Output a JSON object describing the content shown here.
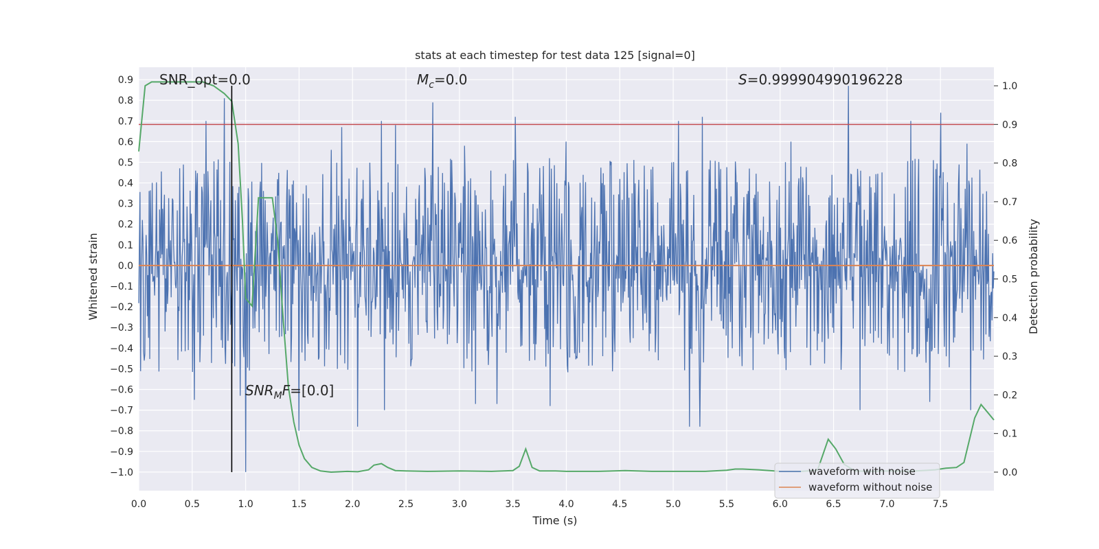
{
  "chart_data": {
    "type": "line",
    "title": "stats at each timestep for test data 125 [signal=0]",
    "xlabel": "Time (s)",
    "ylabel": "Whitened strain",
    "y2label": "Detection probability",
    "xlim": [
      0.0,
      8.0
    ],
    "ylim": [
      -1.09,
      0.96
    ],
    "y2lim": [
      -0.048,
      1.048
    ],
    "x_ticks": [
      0.0,
      0.5,
      1.0,
      1.5,
      2.0,
      2.5,
      3.0,
      3.5,
      4.0,
      4.5,
      5.0,
      5.5,
      6.0,
      6.5,
      7.0,
      7.5
    ],
    "x_tick_labels": [
      "0.0",
      "0.5",
      "1.0",
      "1.5",
      "2.0",
      "2.5",
      "3.0",
      "3.5",
      "4.0",
      "4.5",
      "5.0",
      "5.5",
      "6.0",
      "6.5",
      "7.0",
      "7.5"
    ],
    "y_ticks": [
      0.9,
      0.8,
      0.7,
      0.6,
      0.5,
      0.4,
      0.3,
      0.2,
      0.1,
      0.0,
      -0.1,
      -0.2,
      -0.3,
      -0.4,
      -0.5,
      -0.6,
      -0.7,
      -0.8,
      -0.9,
      -1.0
    ],
    "y_tick_labels": [
      "0.9",
      "0.8",
      "0.7",
      "0.6",
      "0.5",
      "0.4",
      "0.3",
      "0.2",
      "0.1",
      "0.0",
      "−0.1",
      "−0.2",
      "−0.3",
      "−0.4",
      "−0.5",
      "−0.6",
      "−0.7",
      "−0.8",
      "−0.9",
      "−1.0"
    ],
    "y2_ticks": [
      1.0,
      0.9,
      0.8,
      0.7,
      0.6,
      0.5,
      0.4,
      0.3,
      0.2,
      0.1,
      0.0
    ],
    "y2_tick_labels": [
      "1.0",
      "0.9",
      "0.8",
      "0.7",
      "0.6",
      "0.5",
      "0.4",
      "0.3",
      "0.2",
      "0.1",
      "0.0"
    ],
    "grid": true,
    "legend_placement": "lower-right",
    "annotations": {
      "snr_opt": "SNR_opt=0.0",
      "mc_symbol": "M",
      "mc_sub": "c",
      "mc_value": "=0.0",
      "s_symbol": "S",
      "s_value": "=0.999904990196228",
      "snr_mf_symbol": "SNR",
      "snr_mf_sub": "M",
      "snr_mf_f": "F",
      "snr_mf_value": "=[0.0]"
    },
    "vertical_line_x": 0.87,
    "threshold_probability": 0.9,
    "series": [
      {
        "name": "waveform with noise",
        "color": "#4c72b0",
        "axis": "left",
        "envelope": {
          "band_center": 0.0,
          "typical_abs": 0.3,
          "sample_count": 1400,
          "upper_spikes": [
            [
              0.05,
              0.58
            ],
            [
              0.52,
              0.58
            ],
            [
              0.63,
              0.7
            ],
            [
              0.8,
              0.81
            ],
            [
              1.0,
              0.57
            ],
            [
              1.8,
              0.56
            ],
            [
              1.9,
              0.67
            ],
            [
              2.27,
              0.7
            ],
            [
              2.4,
              0.68
            ],
            [
              2.75,
              0.79
            ],
            [
              3.05,
              0.58
            ],
            [
              3.35,
              0.71
            ],
            [
              3.52,
              0.72
            ],
            [
              4.0,
              0.6
            ],
            [
              5.05,
              0.7
            ],
            [
              5.27,
              0.72
            ],
            [
              6.1,
              0.6
            ],
            [
              6.64,
              0.87
            ],
            [
              7.22,
              0.7
            ],
            [
              7.5,
              0.74
            ],
            [
              7.75,
              0.59
            ]
          ],
          "lower_spikes": [
            [
              0.05,
              -0.46
            ],
            [
              0.52,
              -0.65
            ],
            [
              0.95,
              -0.63
            ],
            [
              1.0,
              -1.0
            ],
            [
              1.5,
              -0.8
            ],
            [
              2.05,
              -0.78
            ],
            [
              2.3,
              -0.7
            ],
            [
              3.15,
              -0.67
            ],
            [
              3.35,
              -0.67
            ],
            [
              3.85,
              -0.68
            ],
            [
              5.15,
              -0.78
            ],
            [
              5.25,
              -0.78
            ],
            [
              6.75,
              -0.7
            ],
            [
              7.4,
              -0.66
            ],
            [
              7.78,
              -0.7
            ]
          ]
        }
      },
      {
        "name": "waveform without noise",
        "color": "#dd8452",
        "axis": "left",
        "x": [
          0.0,
          8.0
        ],
        "y": [
          0.0,
          0.0
        ]
      },
      {
        "name": "",
        "color": "#55a868",
        "axis": "right",
        "x": [
          0.0,
          0.06,
          0.12,
          0.2,
          0.3,
          0.45,
          0.6,
          0.7,
          0.8,
          0.87,
          0.93,
          0.97,
          1.0,
          1.06,
          1.12,
          1.18,
          1.25,
          1.3,
          1.35,
          1.4,
          1.45,
          1.5,
          1.55,
          1.62,
          1.7,
          1.8,
          1.95,
          2.05,
          2.15,
          2.2,
          2.27,
          2.33,
          2.4,
          2.5,
          2.7,
          3.0,
          3.3,
          3.5,
          3.56,
          3.62,
          3.68,
          3.75,
          3.9,
          4.0,
          4.3,
          4.55,
          4.8,
          5.0,
          5.3,
          5.5,
          5.58,
          5.65,
          5.8,
          6.0,
          6.2,
          6.35,
          6.45,
          6.52,
          6.6,
          6.7,
          6.85,
          7.0,
          7.2,
          7.45,
          7.55,
          7.65,
          7.72,
          7.82,
          7.88,
          7.94,
          8.0
        ],
        "y": [
          0.83,
          1.0,
          1.01,
          1.01,
          1.01,
          1.01,
          1.01,
          1.0,
          0.98,
          0.96,
          0.85,
          0.65,
          0.45,
          0.43,
          0.71,
          0.71,
          0.71,
          0.6,
          0.4,
          0.22,
          0.13,
          0.07,
          0.035,
          0.012,
          0.003,
          0.0,
          0.002,
          0.001,
          0.006,
          0.018,
          0.022,
          0.012,
          0.004,
          0.003,
          0.002,
          0.003,
          0.002,
          0.004,
          0.015,
          0.06,
          0.012,
          0.003,
          0.003,
          0.002,
          0.002,
          0.004,
          0.002,
          0.002,
          0.002,
          0.005,
          0.008,
          0.008,
          0.006,
          0.002,
          0.002,
          0.005,
          0.085,
          0.06,
          0.02,
          0.003,
          0.002,
          0.003,
          0.002,
          0.006,
          0.01,
          0.012,
          0.025,
          0.14,
          0.175,
          0.155,
          0.135
        ]
      }
    ]
  }
}
